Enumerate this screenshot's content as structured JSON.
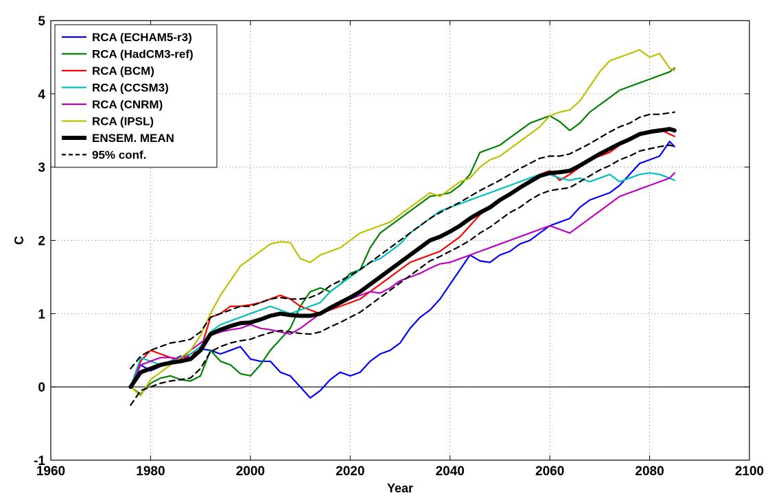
{
  "chart_data": {
    "type": "line",
    "xlabel": "Year",
    "ylabel": "C",
    "xlim": [
      1960,
      2100
    ],
    "ylim": [
      -1,
      5
    ],
    "xticks": [
      1960,
      1980,
      2000,
      2020,
      2040,
      2060,
      2080,
      2100
    ],
    "yticks": [
      -1,
      0,
      1,
      2,
      3,
      4,
      5
    ],
    "grid": true,
    "legend_position": "top-left",
    "zero_line": 0,
    "series": [
      {
        "name": "RCA (ECHAM5-r3)",
        "color": "#0000ff",
        "style": "solid",
        "x": [
          1976,
          1978,
          1980,
          1982,
          1984,
          1986,
          1988,
          1990,
          1992,
          1994,
          1996,
          1998,
          2000,
          2002,
          2004,
          2006,
          2008,
          2010,
          2012,
          2014,
          2016,
          2018,
          2020,
          2022,
          2024,
          2026,
          2028,
          2030,
          2032,
          2034,
          2036,
          2038,
          2040,
          2042,
          2044,
          2046,
          2048,
          2050,
          2052,
          2054,
          2056,
          2058,
          2060,
          2062,
          2064,
          2066,
          2068,
          2070,
          2072,
          2074,
          2076,
          2078,
          2080,
          2082,
          2084,
          2085
        ],
        "y": [
          0.0,
          0.3,
          0.22,
          0.28,
          0.35,
          0.42,
          0.4,
          0.52,
          0.5,
          0.45,
          0.5,
          0.55,
          0.38,
          0.35,
          0.35,
          0.2,
          0.15,
          0.0,
          -0.15,
          -0.05,
          0.1,
          0.2,
          0.15,
          0.2,
          0.35,
          0.45,
          0.5,
          0.6,
          0.8,
          0.95,
          1.05,
          1.2,
          1.4,
          1.6,
          1.8,
          1.72,
          1.7,
          1.8,
          1.85,
          1.95,
          2.0,
          2.1,
          2.2,
          2.25,
          2.3,
          2.45,
          2.55,
          2.6,
          2.65,
          2.75,
          2.9,
          3.05,
          3.1,
          3.15,
          3.35,
          3.28
        ]
      },
      {
        "name": "RCA (HadCM3-ref)",
        "color": "#008000",
        "style": "solid",
        "x": [
          1976,
          1978,
          1980,
          1982,
          1984,
          1986,
          1988,
          1990,
          1992,
          1994,
          1996,
          1998,
          2000,
          2002,
          2004,
          2006,
          2008,
          2010,
          2012,
          2014,
          2016,
          2018,
          2020,
          2022,
          2024,
          2026,
          2028,
          2030,
          2032,
          2034,
          2036,
          2038,
          2040,
          2042,
          2044,
          2046,
          2048,
          2050,
          2052,
          2054,
          2056,
          2058,
          2060,
          2062,
          2064,
          2066,
          2068,
          2070,
          2072,
          2074,
          2076,
          2078,
          2080,
          2082,
          2084,
          2085
        ],
        "y": [
          0.0,
          -0.1,
          0.05,
          0.12,
          0.15,
          0.1,
          0.08,
          0.15,
          0.5,
          0.35,
          0.3,
          0.18,
          0.15,
          0.3,
          0.5,
          0.65,
          0.8,
          1.1,
          1.3,
          1.35,
          1.3,
          1.4,
          1.55,
          1.6,
          1.9,
          2.1,
          2.2,
          2.3,
          2.4,
          2.5,
          2.6,
          2.62,
          2.65,
          2.75,
          2.9,
          3.2,
          3.25,
          3.3,
          3.4,
          3.5,
          3.6,
          3.65,
          3.7,
          3.62,
          3.5,
          3.6,
          3.75,
          3.85,
          3.95,
          4.05,
          4.1,
          4.15,
          4.2,
          4.25,
          4.3,
          4.35
        ]
      },
      {
        "name": "RCA (BCM)",
        "color": "#ff0000",
        "style": "solid",
        "x": [
          1976,
          1978,
          1980,
          1982,
          1984,
          1986,
          1988,
          1990,
          1992,
          1994,
          1996,
          1998,
          2000,
          2002,
          2004,
          2006,
          2008,
          2010,
          2012,
          2014,
          2016,
          2018,
          2020,
          2022,
          2024,
          2026,
          2028,
          2030,
          2032,
          2034,
          2036,
          2038,
          2040,
          2042,
          2044,
          2046,
          2048,
          2050,
          2052,
          2054,
          2056,
          2058,
          2060,
          2062,
          2064,
          2066,
          2068,
          2070,
          2072,
          2074,
          2076,
          2078,
          2080,
          2082,
          2084,
          2085
        ],
        "y": [
          0.0,
          0.35,
          0.5,
          0.45,
          0.4,
          0.35,
          0.45,
          0.5,
          0.95,
          1.0,
          1.1,
          1.1,
          1.12,
          1.15,
          1.2,
          1.25,
          1.2,
          1.1,
          1.05,
          1.0,
          1.05,
          1.1,
          1.15,
          1.2,
          1.3,
          1.4,
          1.5,
          1.6,
          1.7,
          1.75,
          1.8,
          1.85,
          1.95,
          2.05,
          2.2,
          2.35,
          2.45,
          2.55,
          2.65,
          2.7,
          2.8,
          2.9,
          2.95,
          2.82,
          2.9,
          3.0,
          3.1,
          3.15,
          3.2,
          3.3,
          3.4,
          3.45,
          3.5,
          3.52,
          3.45,
          3.42
        ]
      },
      {
        "name": "RCA (CCSM3)",
        "color": "#00bfbf",
        "style": "solid",
        "x": [
          1976,
          1978,
          1980,
          1982,
          1984,
          1986,
          1988,
          1990,
          1992,
          1994,
          1996,
          1998,
          2000,
          2002,
          2004,
          2006,
          2008,
          2010,
          2012,
          2014,
          2016,
          2018,
          2020,
          2022,
          2024,
          2026,
          2028,
          2030,
          2032,
          2034,
          2036,
          2038,
          2040,
          2042,
          2044,
          2046,
          2048,
          2050,
          2052,
          2054,
          2056,
          2058,
          2060,
          2062,
          2064,
          2066,
          2068,
          2070,
          2072,
          2074,
          2076,
          2078,
          2080,
          2082,
          2084,
          2085
        ],
        "y": [
          0.0,
          0.4,
          0.35,
          0.3,
          0.35,
          0.4,
          0.45,
          0.55,
          0.75,
          0.85,
          0.9,
          0.95,
          1.0,
          1.05,
          1.1,
          1.05,
          1.0,
          1.05,
          1.1,
          1.15,
          1.3,
          1.4,
          1.5,
          1.6,
          1.7,
          1.75,
          1.85,
          1.95,
          2.1,
          2.2,
          2.3,
          2.4,
          2.45,
          2.5,
          2.55,
          2.6,
          2.65,
          2.7,
          2.75,
          2.8,
          2.85,
          2.9,
          2.9,
          2.85,
          2.82,
          2.85,
          2.8,
          2.85,
          2.9,
          2.8,
          2.85,
          2.9,
          2.92,
          2.9,
          2.85,
          2.82
        ]
      },
      {
        "name": "RCA (CNRM)",
        "color": "#bf00bf",
        "style": "solid",
        "x": [
          1976,
          1978,
          1980,
          1982,
          1984,
          1986,
          1988,
          1990,
          1992,
          1994,
          1996,
          1998,
          2000,
          2002,
          2004,
          2006,
          2008,
          2010,
          2012,
          2014,
          2016,
          2018,
          2020,
          2022,
          2024,
          2026,
          2028,
          2030,
          2032,
          2034,
          2036,
          2038,
          2040,
          2042,
          2044,
          2046,
          2048,
          2050,
          2052,
          2054,
          2056,
          2058,
          2060,
          2062,
          2064,
          2066,
          2068,
          2070,
          2072,
          2074,
          2076,
          2078,
          2080,
          2082,
          2084,
          2085
        ],
        "y": [
          0.0,
          0.3,
          0.35,
          0.4,
          0.4,
          0.38,
          0.5,
          0.6,
          0.7,
          0.75,
          0.78,
          0.8,
          0.85,
          0.8,
          0.78,
          0.75,
          0.72,
          0.8,
          0.9,
          1.0,
          1.05,
          1.15,
          1.2,
          1.25,
          1.3,
          1.28,
          1.35,
          1.45,
          1.5,
          1.55,
          1.62,
          1.68,
          1.7,
          1.75,
          1.8,
          1.85,
          1.9,
          1.95,
          2.0,
          2.05,
          2.1,
          2.15,
          2.2,
          2.15,
          2.1,
          2.2,
          2.3,
          2.4,
          2.5,
          2.6,
          2.65,
          2.7,
          2.75,
          2.8,
          2.85,
          2.92
        ]
      },
      {
        "name": "RCA (IPSL)",
        "color": "#bfbf00",
        "style": "solid",
        "x": [
          1976,
          1978,
          1980,
          1982,
          1984,
          1986,
          1988,
          1990,
          1992,
          1994,
          1996,
          1998,
          2000,
          2002,
          2004,
          2006,
          2008,
          2010,
          2012,
          2014,
          2016,
          2018,
          2020,
          2022,
          2024,
          2026,
          2028,
          2030,
          2032,
          2034,
          2036,
          2038,
          2040,
          2042,
          2044,
          2046,
          2048,
          2050,
          2052,
          2054,
          2056,
          2058,
          2060,
          2062,
          2064,
          2066,
          2068,
          2070,
          2072,
          2074,
          2076,
          2078,
          2080,
          2082,
          2084,
          2085
        ],
        "y": [
          0.0,
          -0.12,
          0.1,
          0.2,
          0.3,
          0.4,
          0.5,
          0.7,
          1.0,
          1.25,
          1.45,
          1.65,
          1.75,
          1.85,
          1.95,
          1.98,
          1.97,
          1.75,
          1.7,
          1.8,
          1.85,
          1.9,
          2.0,
          2.1,
          2.15,
          2.2,
          2.25,
          2.35,
          2.45,
          2.55,
          2.65,
          2.6,
          2.7,
          2.8,
          2.85,
          3.0,
          3.1,
          3.15,
          3.25,
          3.35,
          3.45,
          3.55,
          3.7,
          3.75,
          3.78,
          3.9,
          4.1,
          4.3,
          4.45,
          4.5,
          4.55,
          4.6,
          4.5,
          4.55,
          4.35,
          4.32
        ]
      },
      {
        "name": "ENSEM. MEAN",
        "color": "#000000",
        "style": "thick",
        "x": [
          1976,
          1978,
          1980,
          1982,
          1984,
          1986,
          1988,
          1990,
          1992,
          1994,
          1996,
          1998,
          2000,
          2002,
          2004,
          2006,
          2008,
          2010,
          2012,
          2014,
          2016,
          2018,
          2020,
          2022,
          2024,
          2026,
          2028,
          2030,
          2032,
          2034,
          2036,
          2038,
          2040,
          2042,
          2044,
          2046,
          2048,
          2050,
          2052,
          2054,
          2056,
          2058,
          2060,
          2062,
          2064,
          2066,
          2068,
          2070,
          2072,
          2074,
          2076,
          2078,
          2080,
          2082,
          2084,
          2085
        ],
        "y": [
          0.0,
          0.2,
          0.25,
          0.3,
          0.33,
          0.35,
          0.38,
          0.5,
          0.72,
          0.78,
          0.83,
          0.87,
          0.88,
          0.92,
          0.97,
          1.0,
          0.98,
          0.97,
          0.97,
          1.0,
          1.08,
          1.15,
          1.22,
          1.3,
          1.4,
          1.5,
          1.6,
          1.7,
          1.8,
          1.9,
          2.0,
          2.05,
          2.12,
          2.2,
          2.3,
          2.38,
          2.45,
          2.55,
          2.63,
          2.72,
          2.8,
          2.88,
          2.92,
          2.93,
          2.95,
          3.02,
          3.1,
          3.18,
          3.25,
          3.32,
          3.38,
          3.45,
          3.48,
          3.5,
          3.52,
          3.5
        ]
      },
      {
        "name": "95% conf.",
        "color": "#000000",
        "style": "dashed",
        "x": [
          1976,
          1978,
          1980,
          1982,
          1984,
          1986,
          1988,
          1990,
          1992,
          1994,
          1996,
          1998,
          2000,
          2002,
          2004,
          2006,
          2008,
          2010,
          2012,
          2014,
          2016,
          2018,
          2020,
          2022,
          2024,
          2026,
          2028,
          2030,
          2032,
          2034,
          2036,
          2038,
          2040,
          2042,
          2044,
          2046,
          2048,
          2050,
          2052,
          2054,
          2056,
          2058,
          2060,
          2062,
          2064,
          2066,
          2068,
          2070,
          2072,
          2074,
          2076,
          2078,
          2080,
          2082,
          2084,
          2085
        ],
        "y": [
          0.25,
          0.42,
          0.5,
          0.55,
          0.6,
          0.62,
          0.65,
          0.75,
          0.95,
          1.0,
          1.05,
          1.1,
          1.1,
          1.15,
          1.2,
          1.22,
          1.2,
          1.2,
          1.22,
          1.28,
          1.38,
          1.45,
          1.52,
          1.6,
          1.7,
          1.8,
          1.9,
          2.0,
          2.1,
          2.2,
          2.3,
          2.38,
          2.45,
          2.52,
          2.6,
          2.68,
          2.75,
          2.82,
          2.9,
          2.98,
          3.05,
          3.12,
          3.15,
          3.15,
          3.18,
          3.25,
          3.32,
          3.4,
          3.48,
          3.55,
          3.6,
          3.68,
          3.72,
          3.72,
          3.74,
          3.75
        ]
      },
      {
        "name": "",
        "color": "#000000",
        "style": "dashed",
        "x": [
          1976,
          1978,
          1980,
          1982,
          1984,
          1986,
          1988,
          1990,
          1992,
          1994,
          1996,
          1998,
          2000,
          2002,
          2004,
          2006,
          2008,
          2010,
          2012,
          2014,
          2016,
          2018,
          2020,
          2022,
          2024,
          2026,
          2028,
          2030,
          2032,
          2034,
          2036,
          2038,
          2040,
          2042,
          2044,
          2046,
          2048,
          2050,
          2052,
          2054,
          2056,
          2058,
          2060,
          2062,
          2064,
          2066,
          2068,
          2070,
          2072,
          2074,
          2076,
          2078,
          2080,
          2082,
          2084,
          2085
        ],
        "y": [
          -0.25,
          -0.05,
          0.0,
          0.05,
          0.08,
          0.1,
          0.12,
          0.25,
          0.48,
          0.55,
          0.6,
          0.63,
          0.65,
          0.7,
          0.74,
          0.77,
          0.75,
          0.73,
          0.72,
          0.75,
          0.82,
          0.88,
          0.95,
          1.02,
          1.12,
          1.22,
          1.32,
          1.42,
          1.52,
          1.62,
          1.72,
          1.78,
          1.85,
          1.92,
          2.0,
          2.1,
          2.18,
          2.28,
          2.38,
          2.45,
          2.55,
          2.63,
          2.68,
          2.7,
          2.72,
          2.8,
          2.88,
          2.96,
          3.02,
          3.1,
          3.15,
          3.22,
          3.25,
          3.28,
          3.3,
          3.28
        ]
      }
    ]
  }
}
